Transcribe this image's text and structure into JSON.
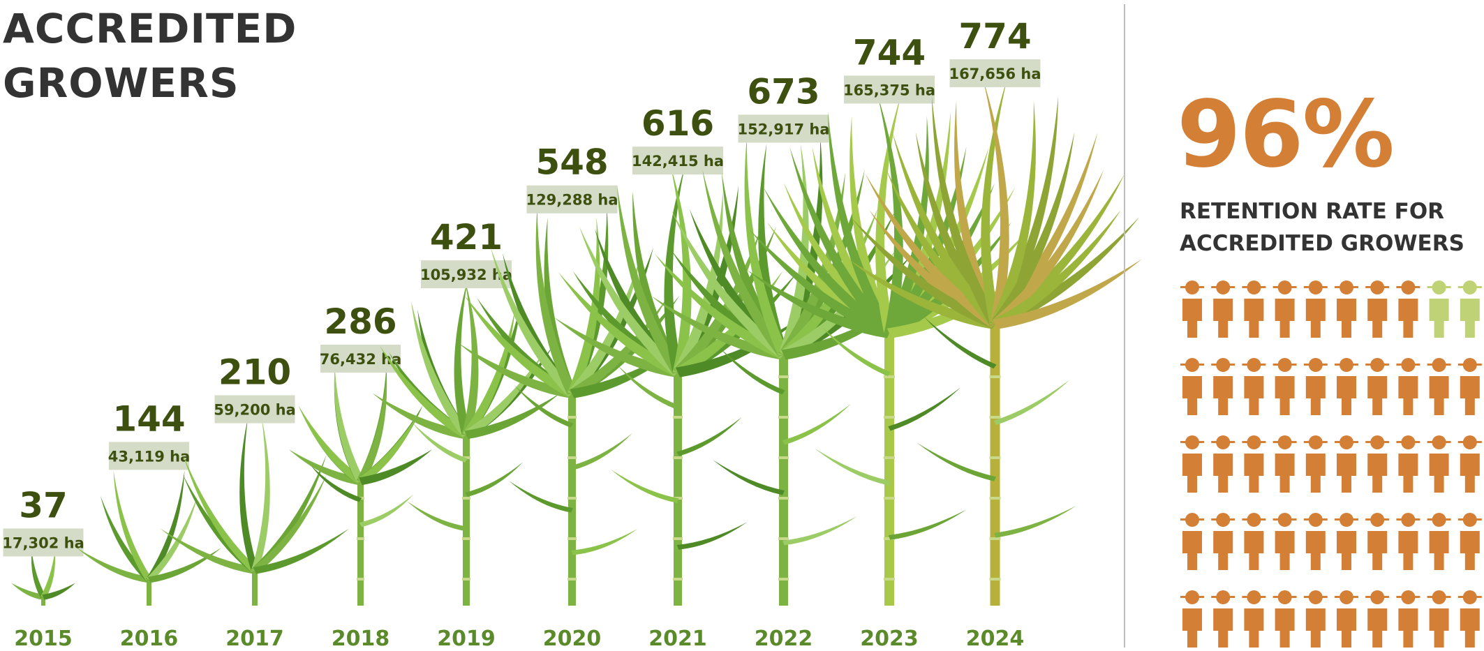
{
  "title": {
    "line1": "ACCREDITED",
    "line2": "GROWERS"
  },
  "retention": {
    "percent": "96%",
    "label_line1": "RETENTION RATE FOR",
    "label_line2": "ACCREDITED GROWERS",
    "value": 0.96
  },
  "colors": {
    "count_text": "#3d5010",
    "ha_box": "#d4dbc6",
    "year_text": "#5a8a2a",
    "accent": "#d47f36",
    "light_person": "#bfd275"
  },
  "icons": {
    "plant": "sugarcane-plant-icon",
    "person": "farmer-person-icon"
  },
  "chart_data": {
    "type": "bar",
    "categories": [
      "2015",
      "2016",
      "2017",
      "2018",
      "2019",
      "2020",
      "2021",
      "2022",
      "2023",
      "2024"
    ],
    "series": [
      {
        "values": [
          37,
          144,
          210,
          286,
          421,
          548,
          616,
          673,
          744,
          774
        ]
      }
    ],
    "area_labels": [
      "17,302 ha",
      "43,119 ha",
      "59,200 ha",
      "76,432 ha",
      "105,932 ha",
      "129,288 ha",
      "142,415 ha",
      "152,917 ha",
      "165,375 ha",
      "167,656 ha"
    ],
    "area_values": [
      17302,
      43119,
      59200,
      76432,
      105932,
      129288,
      142415,
      152917,
      165375,
      167656
    ]
  }
}
